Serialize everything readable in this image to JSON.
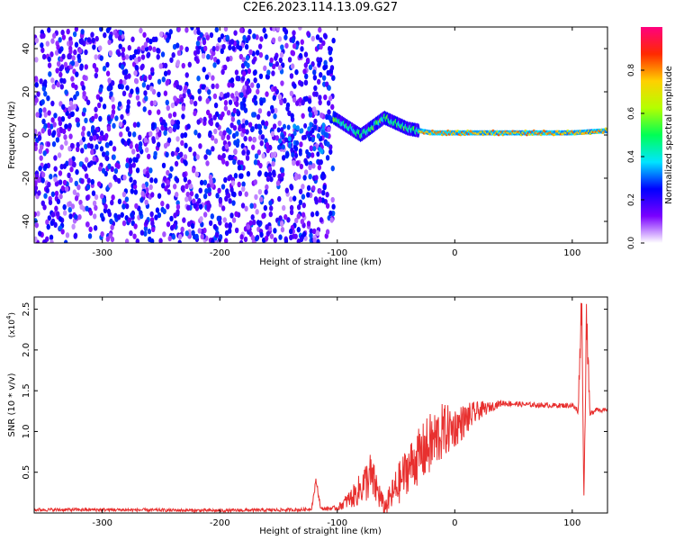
{
  "title": "C2E6.2023.114.13.09.G27",
  "chart_data": [
    {
      "type": "heatmap",
      "xlabel": "Height of straight line (km)",
      "ylabel": "Frequency (Hz)",
      "xlim": [
        -358,
        130
      ],
      "ylim": [
        -50,
        50
      ],
      "x_ticks": [
        -300,
        -200,
        -100,
        0,
        100
      ],
      "y_ticks": [
        -40,
        -20,
        0,
        20,
        40
      ],
      "colorbar": {
        "label": "Normalized spectral amplitude",
        "range": [
          0,
          1
        ],
        "ticks": [
          "0.0",
          "0.2",
          "0.4",
          "0.6",
          "0.8"
        ],
        "tick_values": [
          0.0,
          0.2,
          0.4,
          0.6,
          0.8
        ],
        "colors": [
          "#ffffff",
          "#7a00ff",
          "#0000ff",
          "#00e5ff",
          "#00ff55",
          "#b4ff00",
          "#ffd000",
          "#ff2a00",
          "#ff007f"
        ]
      },
      "features": {
        "noise_region_x": [
          -358,
          -103
        ],
        "noise_amplitude": 0.25,
        "signal_x": [
          -103,
          130
        ],
        "signal_center_hz": [
          [
            -103,
            8
          ],
          [
            -80,
            0
          ],
          [
            -60,
            8
          ],
          [
            -40,
            3
          ],
          [
            -20,
            1
          ],
          [
            0,
            1
          ],
          [
            100,
            1
          ],
          [
            130,
            2
          ]
        ],
        "signal_peak_amplitude": 0.85
      }
    },
    {
      "type": "line",
      "xlabel": "Height of straight line (km)",
      "ylabel": "SNR (10 * v/v)",
      "y_multiplier": "(x10^4)",
      "multiplier_base": "x10",
      "multiplier_exp": "4",
      "xlim": [
        -358,
        130
      ],
      "ylim": [
        0,
        2.65
      ],
      "x_ticks": [
        -300,
        -200,
        -100,
        0,
        100
      ],
      "y_ticks": [
        0.5,
        1.0,
        1.5,
        2.0,
        2.5
      ],
      "y_tick_labels": [
        "0.5",
        "1.0",
        "1.5",
        "2.0",
        "2.5"
      ],
      "series": [
        {
          "color": "#e8302f",
          "x": [
            -358,
            -300,
            -200,
            -130,
            -122,
            -118,
            -114,
            -100,
            -85,
            -72,
            -65,
            -60,
            -50,
            -40,
            -30,
            -20,
            -10,
            0,
            10,
            20,
            30,
            40,
            60,
            80,
            100,
            105,
            108,
            110,
            112,
            115,
            120,
            130
          ],
          "values": [
            0.04,
            0.04,
            0.03,
            0.04,
            0.05,
            0.4,
            0.05,
            0.06,
            0.22,
            0.45,
            0.25,
            0.06,
            0.3,
            0.55,
            0.7,
            0.85,
            1.0,
            1.05,
            1.15,
            1.25,
            1.3,
            1.35,
            1.33,
            1.32,
            1.32,
            1.25,
            2.65,
            0.1,
            2.5,
            1.2,
            1.28,
            1.25
          ],
          "noise_amplitude": [
            0.02,
            0.02,
            0.02,
            0.02,
            0.02,
            0.05,
            0.02,
            0.03,
            0.15,
            0.3,
            0.2,
            0.1,
            0.25,
            0.3,
            0.35,
            0.4,
            0.35,
            0.25,
            0.2,
            0.12,
            0.06,
            0.04,
            0.03,
            0.03,
            0.03,
            0.05,
            0.3,
            0.1,
            0.3,
            0.05,
            0.03,
            0.03
          ]
        }
      ]
    }
  ]
}
